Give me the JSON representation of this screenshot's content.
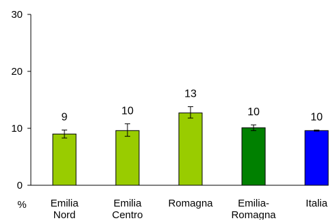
{
  "chart_data": {
    "type": "bar",
    "unit_label": "%",
    "ylim": [
      0,
      30
    ],
    "yticks": [
      {
        "value": 0,
        "label": "0"
      },
      {
        "value": 10,
        "label": "10"
      },
      {
        "value": 20,
        "label": "20"
      },
      {
        "value": 30,
        "label": "30"
      }
    ],
    "grid": false,
    "legend": "none",
    "bars": [
      {
        "category": [
          "Emilia",
          "Nord"
        ],
        "value": 9.0,
        "label": "9",
        "err_low": 8.3,
        "err_high": 9.7,
        "color": "#99cc00"
      },
      {
        "category": [
          "Emilia",
          "Centro"
        ],
        "value": 9.6,
        "label": "10",
        "err_low": 8.6,
        "err_high": 10.8,
        "color": "#99cc00"
      },
      {
        "category": [
          "Romagna"
        ],
        "value": 12.7,
        "label": "13",
        "err_low": 11.8,
        "err_high": 13.8,
        "color": "#99cc00"
      },
      {
        "category": [
          "Emilia-",
          "Romagna"
        ],
        "value": 10.1,
        "label": "10",
        "err_low": 9.6,
        "err_high": 10.6,
        "color": "#008000"
      },
      {
        "category": [
          "Italia"
        ],
        "value": 9.6,
        "label": "10",
        "err_low": 9.5,
        "err_high": 9.7,
        "color": "#0000ff"
      }
    ]
  }
}
